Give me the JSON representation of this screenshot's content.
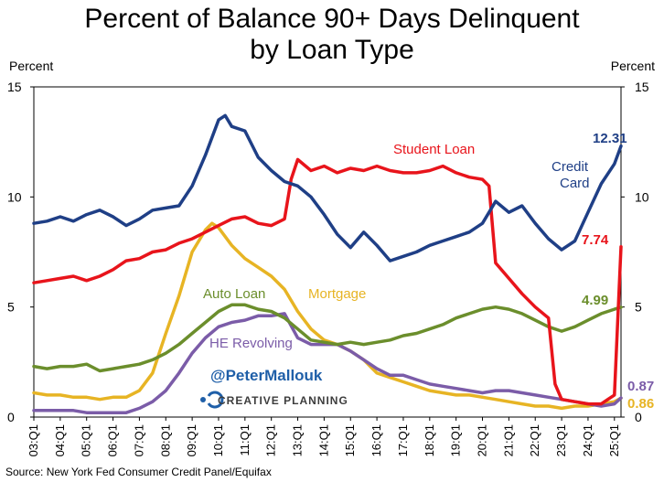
{
  "chart_data": {
    "type": "line",
    "title_line1": "Percent of Balance 90+ Days Delinquent",
    "title_line2": "by Loan Type",
    "ylabel_left": "Percent",
    "ylabel_right": "Percent",
    "ylim": [
      0,
      15
    ],
    "yticks": [
      0,
      5,
      10,
      15
    ],
    "xlim": [
      2003.0,
      2025.25
    ],
    "x_tick_labels": [
      "03:Q1",
      "04:Q1",
      "05:Q1",
      "06:Q1",
      "07:Q1",
      "08:Q1",
      "09:Q1",
      "10:Q1",
      "11:Q1",
      "12:Q1",
      "13:Q1",
      "14:Q1",
      "15:Q1",
      "16:Q1",
      "17:Q1",
      "18:Q1",
      "19:Q1",
      "20:Q1",
      "21:Q1",
      "22:Q1",
      "23:Q1",
      "24:Q1",
      "25:Q1"
    ],
    "grid": false,
    "source": "Source: New York Fed Consumer Credit Panel/Equifax",
    "watermark_handle": "@PeterMallouk",
    "watermark_brand": "CREATIVE PLANNING",
    "series": [
      {
        "name": "Credit Card",
        "label_line1": "Credit",
        "label_line2": "Card",
        "color": "#1f3f86",
        "end_label": "12.31",
        "end_label_color": "#1f3f86",
        "points": [
          [
            2003.0,
            8.8
          ],
          [
            2003.5,
            8.9
          ],
          [
            2004.0,
            9.1
          ],
          [
            2004.5,
            8.9
          ],
          [
            2005.0,
            9.2
          ],
          [
            2005.5,
            9.4
          ],
          [
            2006.0,
            9.1
          ],
          [
            2006.5,
            8.7
          ],
          [
            2007.0,
            9.0
          ],
          [
            2007.5,
            9.4
          ],
          [
            2008.0,
            9.5
          ],
          [
            2008.5,
            9.6
          ],
          [
            2009.0,
            10.5
          ],
          [
            2009.5,
            11.9
          ],
          [
            2010.0,
            13.5
          ],
          [
            2010.25,
            13.7
          ],
          [
            2010.5,
            13.2
          ],
          [
            2011.0,
            13.0
          ],
          [
            2011.5,
            11.8
          ],
          [
            2012.0,
            11.2
          ],
          [
            2012.5,
            10.7
          ],
          [
            2013.0,
            10.5
          ],
          [
            2013.5,
            10.0
          ],
          [
            2014.0,
            9.2
          ],
          [
            2014.5,
            8.3
          ],
          [
            2015.0,
            7.7
          ],
          [
            2015.5,
            8.4
          ],
          [
            2016.0,
            7.8
          ],
          [
            2016.5,
            7.1
          ],
          [
            2017.0,
            7.3
          ],
          [
            2017.5,
            7.5
          ],
          [
            2018.0,
            7.8
          ],
          [
            2018.5,
            8.0
          ],
          [
            2019.0,
            8.2
          ],
          [
            2019.5,
            8.4
          ],
          [
            2020.0,
            8.8
          ],
          [
            2020.5,
            9.8
          ],
          [
            2021.0,
            9.3
          ],
          [
            2021.5,
            9.6
          ],
          [
            2022.0,
            8.8
          ],
          [
            2022.5,
            8.1
          ],
          [
            2023.0,
            7.6
          ],
          [
            2023.5,
            8.0
          ],
          [
            2024.0,
            9.3
          ],
          [
            2024.5,
            10.6
          ],
          [
            2025.0,
            11.5
          ],
          [
            2025.25,
            12.31
          ]
        ]
      },
      {
        "name": "Student Loan",
        "color": "#e8141b",
        "end_label": "7.74",
        "end_label_color": "#e8141b",
        "points": [
          [
            2003.0,
            6.1
          ],
          [
            2003.5,
            6.2
          ],
          [
            2004.0,
            6.3
          ],
          [
            2004.5,
            6.4
          ],
          [
            2005.0,
            6.2
          ],
          [
            2005.5,
            6.4
          ],
          [
            2006.0,
            6.7
          ],
          [
            2006.5,
            7.1
          ],
          [
            2007.0,
            7.2
          ],
          [
            2007.5,
            7.5
          ],
          [
            2008.0,
            7.6
          ],
          [
            2008.5,
            7.9
          ],
          [
            2009.0,
            8.1
          ],
          [
            2009.5,
            8.4
          ],
          [
            2010.0,
            8.7
          ],
          [
            2010.5,
            9.0
          ],
          [
            2011.0,
            9.1
          ],
          [
            2011.5,
            8.8
          ],
          [
            2012.0,
            8.7
          ],
          [
            2012.5,
            9.0
          ],
          [
            2012.75,
            10.8
          ],
          [
            2013.0,
            11.7
          ],
          [
            2013.5,
            11.2
          ],
          [
            2014.0,
            11.4
          ],
          [
            2014.5,
            11.1
          ],
          [
            2015.0,
            11.3
          ],
          [
            2015.5,
            11.2
          ],
          [
            2016.0,
            11.4
          ],
          [
            2016.5,
            11.2
          ],
          [
            2017.0,
            11.1
          ],
          [
            2017.5,
            11.1
          ],
          [
            2018.0,
            11.2
          ],
          [
            2018.5,
            11.4
          ],
          [
            2019.0,
            11.1
          ],
          [
            2019.5,
            10.9
          ],
          [
            2020.0,
            10.8
          ],
          [
            2020.25,
            10.5
          ],
          [
            2020.5,
            7.0
          ],
          [
            2021.0,
            6.3
          ],
          [
            2021.5,
            5.6
          ],
          [
            2022.0,
            5.0
          ],
          [
            2022.5,
            4.5
          ],
          [
            2022.75,
            1.5
          ],
          [
            2023.0,
            0.8
          ],
          [
            2023.5,
            0.7
          ],
          [
            2024.0,
            0.6
          ],
          [
            2024.5,
            0.6
          ],
          [
            2024.75,
            0.8
          ],
          [
            2025.0,
            1.0
          ],
          [
            2025.25,
            7.74
          ]
        ]
      },
      {
        "name": "Auto Loan",
        "color": "#6b8e2c",
        "end_label": "4.99",
        "end_label_color": "#6b8e2c",
        "points": [
          [
            2003.0,
            2.3
          ],
          [
            2003.5,
            2.2
          ],
          [
            2004.0,
            2.3
          ],
          [
            2004.5,
            2.3
          ],
          [
            2005.0,
            2.4
          ],
          [
            2005.5,
            2.1
          ],
          [
            2006.0,
            2.2
          ],
          [
            2006.5,
            2.3
          ],
          [
            2007.0,
            2.4
          ],
          [
            2007.5,
            2.6
          ],
          [
            2008.0,
            2.9
          ],
          [
            2008.5,
            3.3
          ],
          [
            2009.0,
            3.8
          ],
          [
            2009.5,
            4.3
          ],
          [
            2010.0,
            4.8
          ],
          [
            2010.5,
            5.1
          ],
          [
            2011.0,
            5.1
          ],
          [
            2011.5,
            4.9
          ],
          [
            2012.0,
            4.8
          ],
          [
            2012.5,
            4.5
          ],
          [
            2013.0,
            4.0
          ],
          [
            2013.5,
            3.5
          ],
          [
            2014.0,
            3.4
          ],
          [
            2014.5,
            3.3
          ],
          [
            2015.0,
            3.4
          ],
          [
            2015.5,
            3.3
          ],
          [
            2016.0,
            3.4
          ],
          [
            2016.5,
            3.5
          ],
          [
            2017.0,
            3.7
          ],
          [
            2017.5,
            3.8
          ],
          [
            2018.0,
            4.0
          ],
          [
            2018.5,
            4.2
          ],
          [
            2019.0,
            4.5
          ],
          [
            2019.5,
            4.7
          ],
          [
            2020.0,
            4.9
          ],
          [
            2020.5,
            5.0
          ],
          [
            2021.0,
            4.9
          ],
          [
            2021.5,
            4.7
          ],
          [
            2022.0,
            4.4
          ],
          [
            2022.5,
            4.1
          ],
          [
            2023.0,
            3.9
          ],
          [
            2023.5,
            4.1
          ],
          [
            2024.0,
            4.4
          ],
          [
            2024.5,
            4.7
          ],
          [
            2025.0,
            4.9
          ],
          [
            2025.25,
            4.99
          ]
        ]
      },
      {
        "name": "Mortgage",
        "color": "#e7b424",
        "end_label": "0.86",
        "end_label_color": "#e7b424",
        "points": [
          [
            2003.0,
            1.1
          ],
          [
            2003.5,
            1.0
          ],
          [
            2004.0,
            1.0
          ],
          [
            2004.5,
            0.9
          ],
          [
            2005.0,
            0.9
          ],
          [
            2005.5,
            0.8
          ],
          [
            2006.0,
            0.9
          ],
          [
            2006.5,
            0.9
          ],
          [
            2007.0,
            1.2
          ],
          [
            2007.5,
            2.0
          ],
          [
            2008.0,
            3.8
          ],
          [
            2008.5,
            5.5
          ],
          [
            2009.0,
            7.5
          ],
          [
            2009.5,
            8.5
          ],
          [
            2009.75,
            8.8
          ],
          [
            2010.0,
            8.6
          ],
          [
            2010.5,
            7.8
          ],
          [
            2011.0,
            7.2
          ],
          [
            2011.5,
            6.8
          ],
          [
            2012.0,
            6.4
          ],
          [
            2012.5,
            5.8
          ],
          [
            2013.0,
            4.8
          ],
          [
            2013.5,
            4.0
          ],
          [
            2014.0,
            3.5
          ],
          [
            2014.5,
            3.3
          ],
          [
            2015.0,
            3.0
          ],
          [
            2015.5,
            2.6
          ],
          [
            2016.0,
            2.0
          ],
          [
            2016.5,
            1.8
          ],
          [
            2017.0,
            1.6
          ],
          [
            2017.5,
            1.4
          ],
          [
            2018.0,
            1.2
          ],
          [
            2018.5,
            1.1
          ],
          [
            2019.0,
            1.0
          ],
          [
            2019.5,
            1.0
          ],
          [
            2020.0,
            0.9
          ],
          [
            2020.5,
            0.8
          ],
          [
            2021.0,
            0.7
          ],
          [
            2021.5,
            0.6
          ],
          [
            2022.0,
            0.5
          ],
          [
            2022.5,
            0.5
          ],
          [
            2023.0,
            0.4
          ],
          [
            2023.5,
            0.5
          ],
          [
            2024.0,
            0.5
          ],
          [
            2024.5,
            0.6
          ],
          [
            2025.0,
            0.7
          ],
          [
            2025.25,
            0.86
          ]
        ]
      },
      {
        "name": "HE Revolving",
        "color": "#7b5ca8",
        "end_label": "0.87",
        "end_label_color": "#7b5ca8",
        "points": [
          [
            2003.0,
            0.3
          ],
          [
            2003.5,
            0.3
          ],
          [
            2004.0,
            0.3
          ],
          [
            2004.5,
            0.3
          ],
          [
            2005.0,
            0.2
          ],
          [
            2005.5,
            0.2
          ],
          [
            2006.0,
            0.2
          ],
          [
            2006.5,
            0.2
          ],
          [
            2007.0,
            0.4
          ],
          [
            2007.5,
            0.7
          ],
          [
            2008.0,
            1.2
          ],
          [
            2008.5,
            2.0
          ],
          [
            2009.0,
            2.9
          ],
          [
            2009.5,
            3.6
          ],
          [
            2010.0,
            4.1
          ],
          [
            2010.5,
            4.3
          ],
          [
            2011.0,
            4.4
          ],
          [
            2011.5,
            4.6
          ],
          [
            2012.0,
            4.6
          ],
          [
            2012.5,
            4.7
          ],
          [
            2013.0,
            3.6
          ],
          [
            2013.5,
            3.3
          ],
          [
            2014.0,
            3.3
          ],
          [
            2014.5,
            3.3
          ],
          [
            2015.0,
            3.0
          ],
          [
            2015.5,
            2.6
          ],
          [
            2016.0,
            2.2
          ],
          [
            2016.5,
            1.9
          ],
          [
            2017.0,
            1.9
          ],
          [
            2017.5,
            1.7
          ],
          [
            2018.0,
            1.5
          ],
          [
            2018.5,
            1.4
          ],
          [
            2019.0,
            1.3
          ],
          [
            2019.5,
            1.2
          ],
          [
            2020.0,
            1.1
          ],
          [
            2020.5,
            1.2
          ],
          [
            2021.0,
            1.2
          ],
          [
            2021.5,
            1.1
          ],
          [
            2022.0,
            1.0
          ],
          [
            2022.5,
            0.9
          ],
          [
            2023.0,
            0.8
          ],
          [
            2023.5,
            0.7
          ],
          [
            2024.0,
            0.6
          ],
          [
            2024.5,
            0.5
          ],
          [
            2025.0,
            0.6
          ],
          [
            2025.25,
            0.87
          ]
        ]
      }
    ]
  }
}
